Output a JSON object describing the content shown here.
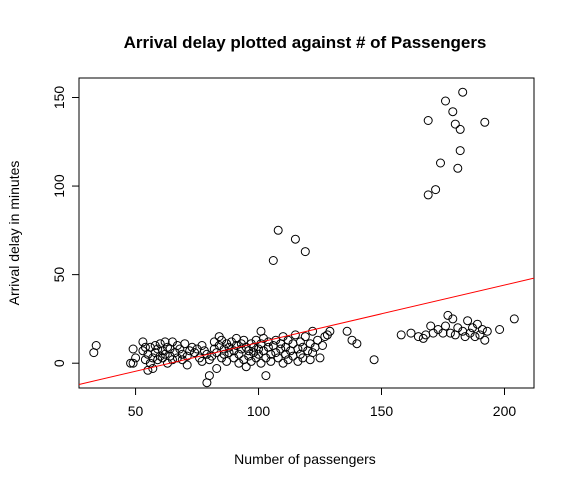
{
  "chart_data": {
    "type": "scatter",
    "title": "Arrival delay plotted against # of Passengers",
    "xlabel": "Number of passengers",
    "ylabel": "Arrival delay in minutes",
    "xlim": [
      27,
      212
    ],
    "ylim": [
      -14,
      161
    ],
    "xticks": [
      50,
      100,
      150,
      200
    ],
    "yticks": [
      0,
      50,
      100,
      150
    ],
    "grid": false,
    "legend": "none",
    "point_color": "#000000",
    "fit_line": {
      "color": "#ff0000",
      "x": [
        27,
        212
      ],
      "y": [
        -12,
        48
      ]
    },
    "points": [
      [
        33,
        6
      ],
      [
        34,
        10
      ],
      [
        48,
        0
      ],
      [
        49,
        8
      ],
      [
        50,
        3
      ],
      [
        49,
        0
      ],
      [
        53,
        12
      ],
      [
        53,
        7
      ],
      [
        54,
        2
      ],
      [
        54,
        9
      ],
      [
        55,
        5
      ],
      [
        55,
        -4
      ],
      [
        56,
        0
      ],
      [
        56,
        9
      ],
      [
        57,
        3
      ],
      [
        57,
        -3
      ],
      [
        58,
        10
      ],
      [
        58,
        6
      ],
      [
        59,
        2
      ],
      [
        59,
        8
      ],
      [
        60,
        4
      ],
      [
        60,
        11
      ],
      [
        61,
        7
      ],
      [
        61,
        3
      ],
      [
        62,
        12
      ],
      [
        62,
        5
      ],
      [
        63,
        0
      ],
      [
        63,
        9
      ],
      [
        64,
        4
      ],
      [
        64,
        8
      ],
      [
        65,
        12
      ],
      [
        65,
        2
      ],
      [
        66,
        6
      ],
      [
        67,
        3
      ],
      [
        67,
        10
      ],
      [
        68,
        8
      ],
      [
        69,
        2
      ],
      [
        69,
        5
      ],
      [
        70,
        11
      ],
      [
        71,
        -1
      ],
      [
        71,
        4
      ],
      [
        72,
        7
      ],
      [
        73,
        9
      ],
      [
        74,
        6
      ],
      [
        75,
        8
      ],
      [
        76,
        3
      ],
      [
        77,
        10
      ],
      [
        77,
        1
      ],
      [
        78,
        7
      ],
      [
        79,
        5
      ],
      [
        79,
        -11
      ],
      [
        80,
        -7
      ],
      [
        80,
        2
      ],
      [
        81,
        4
      ],
      [
        82,
        12
      ],
      [
        82,
        8
      ],
      [
        83,
        -3
      ],
      [
        83,
        6
      ],
      [
        84,
        15
      ],
      [
        84,
        10
      ],
      [
        85,
        3
      ],
      [
        85,
        13
      ],
      [
        86,
        8
      ],
      [
        86,
        5
      ],
      [
        87,
        11
      ],
      [
        87,
        1
      ],
      [
        88,
        6
      ],
      [
        88,
        9
      ],
      [
        89,
        12
      ],
      [
        90,
        7
      ],
      [
        90,
        3
      ],
      [
        91,
        10
      ],
      [
        91,
        14
      ],
      [
        92,
        5
      ],
      [
        92,
        0
      ],
      [
        93,
        8
      ],
      [
        93,
        11
      ],
      [
        94,
        2
      ],
      [
        94,
        13
      ],
      [
        95,
        9
      ],
      [
        95,
        -2
      ],
      [
        96,
        7
      ],
      [
        96,
        4
      ],
      [
        97,
        11
      ],
      [
        97,
        1
      ],
      [
        98,
        6
      ],
      [
        98,
        9
      ],
      [
        99,
        13
      ],
      [
        99,
        3
      ],
      [
        100,
        8
      ],
      [
        100,
        5
      ],
      [
        101,
        18
      ],
      [
        101,
        0
      ],
      [
        101,
        11
      ],
      [
        102,
        7
      ],
      [
        102,
        14
      ],
      [
        103,
        -7
      ],
      [
        103,
        3
      ],
      [
        104,
        9
      ],
      [
        104,
        12
      ],
      [
        105,
        5
      ],
      [
        105,
        1
      ],
      [
        106,
        10
      ],
      [
        106,
        58
      ],
      [
        107,
        6
      ],
      [
        107,
        13
      ],
      [
        108,
        75
      ],
      [
        108,
        3
      ],
      [
        109,
        8
      ],
      [
        109,
        11
      ],
      [
        110,
        15
      ],
      [
        110,
        0
      ],
      [
        111,
        5
      ],
      [
        111,
        9
      ],
      [
        112,
        2
      ],
      [
        112,
        13
      ],
      [
        113,
        7
      ],
      [
        114,
        11
      ],
      [
        114,
        4
      ],
      [
        115,
        70
      ],
      [
        115,
        16
      ],
      [
        116,
        8
      ],
      [
        116,
        1
      ],
      [
        117,
        12
      ],
      [
        117,
        5
      ],
      [
        118,
        3
      ],
      [
        118,
        9
      ],
      [
        119,
        63
      ],
      [
        119,
        15
      ],
      [
        120,
        7
      ],
      [
        121,
        11
      ],
      [
        121,
        2
      ],
      [
        122,
        18
      ],
      [
        122,
        6
      ],
      [
        123,
        9
      ],
      [
        124,
        13
      ],
      [
        125,
        3
      ],
      [
        126,
        10
      ],
      [
        127,
        15
      ],
      [
        128,
        16
      ],
      [
        129,
        18
      ],
      [
        136,
        18
      ],
      [
        138,
        13
      ],
      [
        140,
        11
      ],
      [
        147,
        2
      ],
      [
        158,
        16
      ],
      [
        162,
        17
      ],
      [
        165,
        15
      ],
      [
        167,
        14
      ],
      [
        168,
        16
      ],
      [
        169,
        137
      ],
      [
        169,
        95
      ],
      [
        170,
        21
      ],
      [
        171,
        17
      ],
      [
        172,
        98
      ],
      [
        173,
        19
      ],
      [
        174,
        113
      ],
      [
        175,
        17
      ],
      [
        176,
        148
      ],
      [
        176,
        21
      ],
      [
        177,
        27
      ],
      [
        178,
        17
      ],
      [
        179,
        142
      ],
      [
        179,
        25
      ],
      [
        180,
        135
      ],
      [
        180,
        16
      ],
      [
        181,
        110
      ],
      [
        181,
        20
      ],
      [
        182,
        132
      ],
      [
        182,
        120
      ],
      [
        183,
        153
      ],
      [
        183,
        18
      ],
      [
        184,
        15
      ],
      [
        185,
        24
      ],
      [
        186,
        17
      ],
      [
        187,
        20
      ],
      [
        188,
        15
      ],
      [
        189,
        22
      ],
      [
        190,
        16
      ],
      [
        191,
        19
      ],
      [
        192,
        13
      ],
      [
        192,
        136
      ],
      [
        193,
        18
      ],
      [
        198,
        19
      ],
      [
        204,
        25
      ]
    ]
  }
}
